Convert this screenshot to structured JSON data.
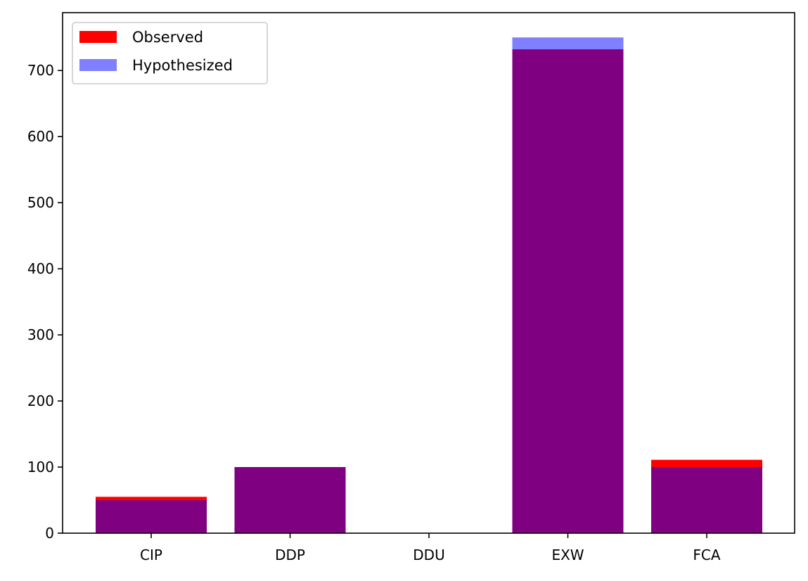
{
  "chart_data": {
    "type": "bar",
    "title": "",
    "xlabel": "",
    "ylabel": "",
    "categories": [
      "CIP",
      "DDP",
      "DDU",
      "EXW",
      "FCA"
    ],
    "series": [
      {
        "name": "Observed",
        "values": [
          55,
          100,
          0,
          732,
          111
        ],
        "color": "#ff0000",
        "opacity": 1.0
      },
      {
        "name": "Hypothesized",
        "values": [
          50,
          100,
          0,
          750,
          100
        ],
        "color": "#0000ff",
        "opacity": 0.5
      }
    ],
    "ylim": [
      0,
      787.5
    ],
    "yticks": [
      0,
      100,
      200,
      300,
      400,
      500,
      600,
      700
    ],
    "ytick_labels": [
      "0",
      "100",
      "200",
      "300",
      "400",
      "500",
      "600",
      "700"
    ],
    "grid": false,
    "legend_position": "top-left"
  }
}
